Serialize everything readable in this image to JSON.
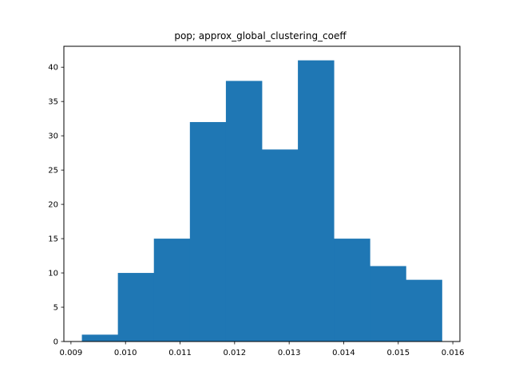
{
  "chart_data": {
    "type": "histogram",
    "title": "pop; approx_global_clustering_coeff",
    "xlabel": "",
    "ylabel": "",
    "bin_edges": [
      0.0092,
      0.00986,
      0.01052,
      0.01118,
      0.01184,
      0.0125,
      0.01316,
      0.01382,
      0.01448,
      0.01514,
      0.0158
    ],
    "counts": [
      1,
      10,
      15,
      32,
      38,
      28,
      41,
      15,
      11,
      9
    ],
    "xlim": [
      0.00887,
      0.01613
    ],
    "ylim": [
      0,
      43.05
    ],
    "x_ticks": [
      0.009,
      0.01,
      0.011,
      0.012,
      0.013,
      0.014,
      0.015,
      0.016
    ],
    "x_tick_labels": [
      "0.009",
      "0.010",
      "0.011",
      "0.012",
      "0.013",
      "0.014",
      "0.015",
      "0.016"
    ],
    "y_ticks": [
      0,
      5,
      10,
      15,
      20,
      25,
      30,
      35,
      40
    ],
    "y_tick_labels": [
      "0",
      "5",
      "10",
      "15",
      "20",
      "25",
      "30",
      "35",
      "40"
    ],
    "grid": false,
    "colors": {
      "bar": "#1f77b4",
      "axes": "#000000",
      "background": "#ffffff"
    }
  }
}
